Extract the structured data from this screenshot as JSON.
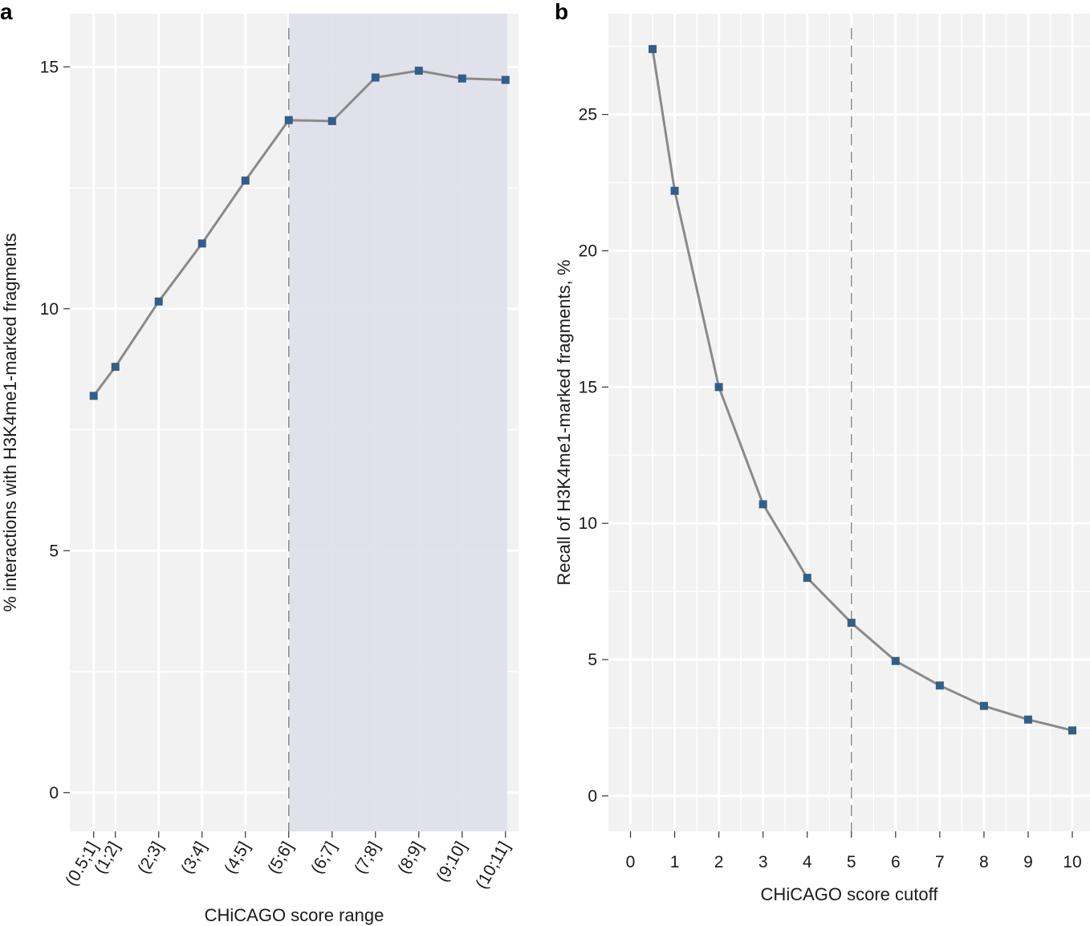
{
  "figure": {
    "panels": [
      "a",
      "b"
    ],
    "colors": {
      "panel_bg": "#f2f2f2",
      "grid": "#ffffff",
      "shade": "#e0e0ec",
      "line": "#8a8a8a",
      "marker": "#335e8a",
      "cutoff_line": "#888888",
      "tick": "#333333"
    }
  },
  "chart_data": [
    {
      "panel": "a",
      "type": "line",
      "categories": [
        "(0.5;1]",
        "(1;2]",
        "(2;3]",
        "(3;4]",
        "(4;5]",
        "(5;6]",
        "(6;7]",
        "(7;8]",
        "(8;9]",
        "(9;10]",
        "(10;11]"
      ],
      "x": [
        0.5,
        1,
        2,
        3,
        4,
        5,
        6,
        7,
        8,
        9,
        10
      ],
      "values": [
        8.2,
        8.8,
        10.15,
        11.35,
        12.65,
        13.9,
        13.88,
        14.78,
        14.92,
        14.76,
        14.73
      ],
      "xlabel": "CHiCAGO score range",
      "ylabel": "% interactions with H3K4me1-marked fragments",
      "ylim": [
        -0.8,
        16.1
      ],
      "xlim": [
        -0.05,
        10.3
      ],
      "yticks": [
        0,
        5,
        10,
        15
      ],
      "cutoff": 5,
      "shade_from": 5
    },
    {
      "panel": "b",
      "type": "line",
      "x": [
        0.5,
        1,
        2,
        3,
        4,
        5,
        6,
        7,
        8,
        9,
        10
      ],
      "values": [
        27.4,
        22.2,
        15.0,
        10.7,
        8.0,
        6.35,
        4.95,
        4.05,
        3.3,
        2.8,
        2.4
      ],
      "xlabel": "CHiCAGO score cutoff",
      "ylabel": "Recall of H3K4me1-marked fragments, %",
      "ylim": [
        -1.3,
        28.7
      ],
      "xlim": [
        -0.5,
        10.4
      ],
      "xticks": [
        0,
        1,
        2,
        3,
        4,
        5,
        6,
        7,
        8,
        9,
        10
      ],
      "yticks": [
        0,
        5,
        10,
        15,
        20,
        25
      ],
      "cutoff": 5
    }
  ]
}
